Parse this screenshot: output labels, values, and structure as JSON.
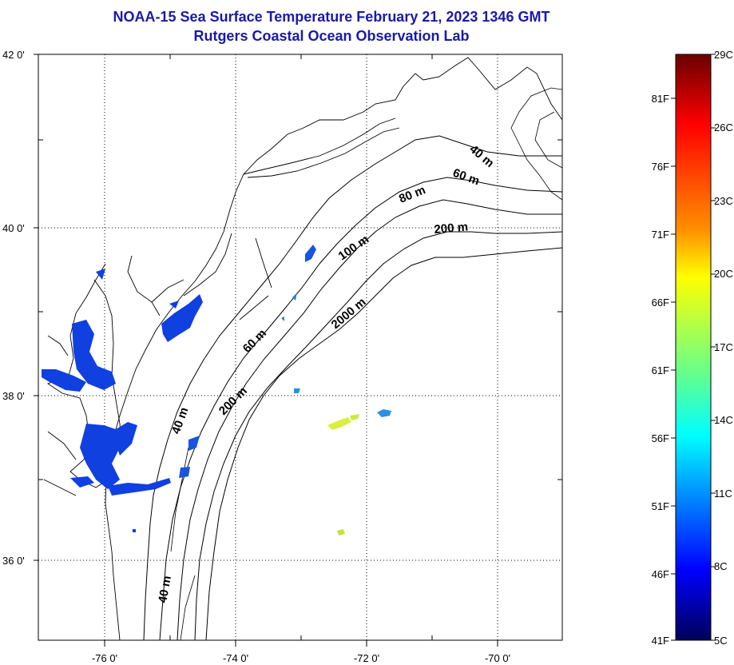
{
  "title": "NOAA-15 Sea Surface Temperature February 21, 2023 1346 GMT",
  "subtitle": "Rutgers Coastal Ocean Observation Lab",
  "lat_labels": [
    "42 0'",
    "40 0'",
    "38 0'",
    "36 0'"
  ],
  "lon_labels": [
    "-76 0'",
    "-74 0'",
    "-72 0'",
    "-70 0'"
  ],
  "depth_labels": [
    "40 m",
    "60 m",
    "80 m",
    "200 m",
    "100 m",
    "2000 m",
    "60 m",
    "200 m",
    "40 m",
    "40 m"
  ],
  "colorbar": {
    "celsius": [
      "29C",
      "26C",
      "23C",
      "20C",
      "17C",
      "14C",
      "11C",
      "8C",
      "5C"
    ],
    "fahrenheit": [
      "81F",
      "76F",
      "71F",
      "66F",
      "61F",
      "56F",
      "51F",
      "46F",
      "41F"
    ],
    "colors": [
      "#7a0000",
      "#ff0000",
      "#ff8800",
      "#ffff00",
      "#80ff80",
      "#00ffff",
      "#0080ff",
      "#0000ff",
      "#00007a"
    ]
  },
  "colors": {
    "title": "#1a1aa8",
    "cold_water": "#1040e0",
    "warm_patch": "#d8ef40",
    "mid_patch": "#2a90e0"
  }
}
